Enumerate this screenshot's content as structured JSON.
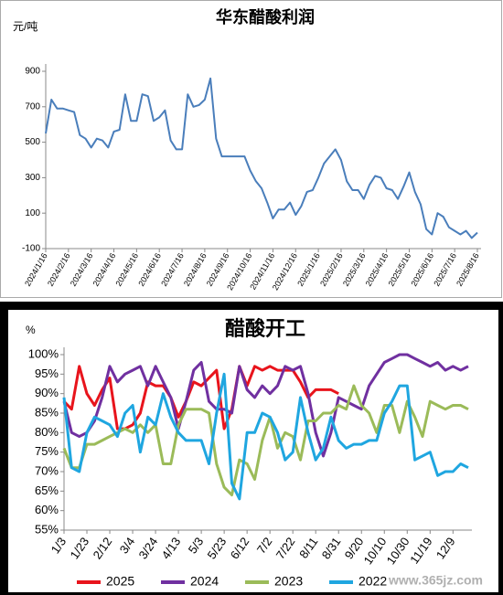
{
  "chart_data": [
    {
      "type": "line",
      "title": "华东醋酸利润",
      "y_label": "元/吨",
      "color": "#4a7ebb",
      "categories": [
        "2024/1/16",
        null,
        null,
        null,
        "2024/2/16",
        null,
        null,
        null,
        "2024/3/16",
        null,
        null,
        null,
        "2024/4/16",
        null,
        null,
        null,
        "2024/5/16",
        null,
        null,
        null,
        "2024/6/16",
        null,
        null,
        null,
        "2024/7/16",
        null,
        null,
        null,
        "2024/8/16",
        null,
        null,
        null,
        "2024/9/16",
        null,
        null,
        null,
        "2024/10/16",
        null,
        null,
        null,
        "2024/11/16",
        null,
        null,
        null,
        "2024/12/16",
        null,
        null,
        null,
        "2025/1/16",
        null,
        null,
        null,
        "2025/2/16",
        null,
        null,
        null,
        "2025/3/16",
        null,
        null,
        null,
        "2025/4/16",
        null,
        null,
        null,
        "2025/5/16",
        null,
        null,
        null,
        "2025/6/16",
        null,
        null,
        null,
        "2025/7/16",
        null,
        null,
        null,
        "2025/8/16"
      ],
      "values": [
        550,
        740,
        690,
        690,
        680,
        670,
        540,
        520,
        470,
        520,
        510,
        470,
        560,
        570,
        770,
        620,
        620,
        770,
        760,
        620,
        640,
        680,
        510,
        460,
        460,
        770,
        700,
        710,
        740,
        860,
        520,
        420,
        420,
        420,
        420,
        420,
        340,
        280,
        240,
        160,
        70,
        120,
        120,
        160,
        90,
        140,
        220,
        230,
        300,
        380,
        420,
        460,
        400,
        280,
        230,
        230,
        180,
        260,
        310,
        300,
        240,
        230,
        180,
        250,
        330,
        220,
        150,
        10,
        -20,
        100,
        80,
        20,
        0,
        -20,
        0,
        -40,
        -10
      ],
      "ylim": [
        -100,
        900
      ],
      "yticks": [
        -100,
        100,
        300,
        500,
        700,
        900
      ]
    },
    {
      "type": "line",
      "title": "醋酸开工",
      "y_label": "%",
      "legend": "bottom",
      "categories": [
        "1/3",
        null,
        null,
        "1/23",
        null,
        null,
        "2/12",
        null,
        null,
        "3/4",
        null,
        null,
        "3/24",
        null,
        null,
        "4/13",
        null,
        null,
        "5/3",
        null,
        null,
        "5/23",
        null,
        null,
        "6/12",
        null,
        null,
        "7/2",
        null,
        null,
        "7/22",
        null,
        null,
        "8/11",
        null,
        null,
        "8/31",
        null,
        null,
        "9/20",
        null,
        null,
        "10/10",
        null,
        null,
        "10/30",
        null,
        null,
        "11/19",
        null,
        null,
        "12/9",
        null,
        null
      ],
      "series": [
        {
          "name": "2025",
          "color": "#e8141c",
          "values": [
            88,
            86,
            97,
            90,
            87,
            91,
            94,
            81,
            81,
            82,
            85,
            93,
            92,
            92,
            89,
            84,
            88,
            93,
            92,
            94,
            96,
            81,
            86,
            97,
            92,
            97,
            96,
            97,
            96,
            96,
            96,
            93,
            89,
            91,
            91,
            91,
            90,
            null,
            null,
            null,
            null,
            null,
            null,
            null,
            null,
            null,
            null,
            null,
            null,
            null,
            null,
            null,
            null,
            null
          ]
        },
        {
          "name": "2024",
          "color": "#7030a0",
          "values": [
            88,
            80,
            79,
            80,
            83,
            89,
            97,
            93,
            95,
            96,
            97,
            92,
            97,
            93,
            89,
            81,
            88,
            96,
            98,
            88,
            86,
            86,
            85,
            97,
            91,
            89,
            92,
            90,
            92,
            97,
            96,
            97,
            90,
            80,
            74,
            80,
            89,
            88,
            87,
            86,
            92,
            95,
            98,
            99,
            100,
            100,
            99,
            98,
            97,
            98,
            96,
            97,
            96,
            97
          ]
        },
        {
          "name": "2023",
          "color": "#9bbb59",
          "values": [
            76,
            71,
            71,
            77,
            77,
            78,
            79,
            80,
            81,
            80,
            82,
            80,
            82,
            72,
            72,
            82,
            86,
            86,
            86,
            85,
            72,
            66,
            64,
            73,
            72,
            68,
            78,
            84,
            76,
            80,
            79,
            73,
            83,
            83,
            85,
            85,
            87,
            86,
            92,
            87,
            85,
            80,
            87,
            87,
            80,
            88,
            84,
            79,
            88,
            87,
            86,
            87,
            87,
            86
          ]
        },
        {
          "name": "2022",
          "color": "#1fa6e0",
          "values": [
            89,
            71,
            70,
            80,
            84,
            83,
            82,
            79,
            85,
            87,
            75,
            84,
            82,
            90,
            84,
            80,
            78,
            78,
            78,
            72,
            85,
            95,
            67,
            63,
            80,
            80,
            85,
            84,
            80,
            73,
            75,
            89,
            80,
            73,
            76,
            84,
            78,
            76,
            77,
            77,
            78,
            78,
            85,
            88,
            92,
            92,
            73,
            74,
            75,
            69,
            70,
            70,
            72,
            71
          ]
        }
      ],
      "ylim": [
        55,
        100
      ],
      "yticks": [
        {
          "value": 55,
          "label": "55%"
        },
        {
          "value": 60,
          "label": "60%"
        },
        {
          "value": 65,
          "label": "65%"
        },
        {
          "value": 70,
          "label": "70%"
        },
        {
          "value": 75,
          "label": "75%"
        },
        {
          "value": 80,
          "label": "80%"
        },
        {
          "value": 85,
          "label": "85%"
        },
        {
          "value": 90,
          "label": "90%"
        },
        {
          "value": 95,
          "label": "95%"
        },
        {
          "value": 100,
          "label": "100%"
        }
      ]
    }
  ],
  "watermark": "www.365jz.com"
}
